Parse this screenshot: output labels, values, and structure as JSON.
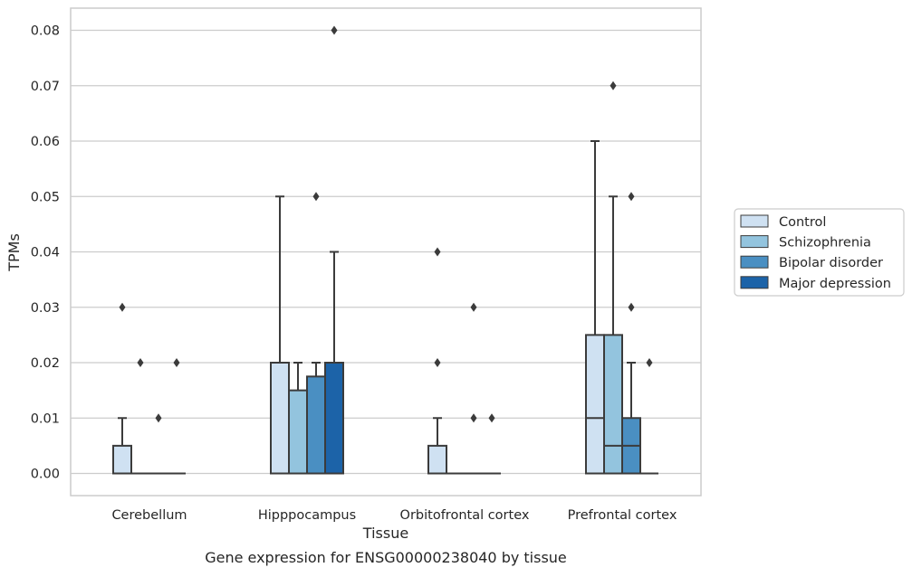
{
  "chart_data": {
    "type": "boxplot",
    "caption": "Gene expression for ENSG00000238040 by tissue",
    "xlabel": "Tissue",
    "ylabel": "TPMs",
    "ylim": [
      -0.004,
      0.084
    ],
    "yticks": [
      0.0,
      0.01,
      0.02,
      0.03,
      0.04,
      0.05,
      0.06,
      0.07,
      0.08
    ],
    "ytick_labels": [
      "0.00",
      "0.01",
      "0.02",
      "0.03",
      "0.04",
      "0.05",
      "0.06",
      "0.07",
      "0.08"
    ],
    "grid": "horizontal",
    "legend_position": "right, outside plot",
    "categories": [
      "Cerebellum",
      "Hipppocampus",
      "Orbitofrontal cortex",
      "Prefrontal cortex"
    ],
    "series": [
      {
        "name": "Control",
        "color": "#cfe1f2"
      },
      {
        "name": "Schizophrenia",
        "color": "#93c4de"
      },
      {
        "name": "Bipolar disorder",
        "color": "#4a8fc2"
      },
      {
        "name": "Major depression",
        "color": "#1c63a8"
      }
    ],
    "boxes": [
      [
        {
          "q1": 0.0,
          "median": 0.0,
          "q3": 0.005,
          "whislo": 0.0,
          "whishi": 0.01,
          "fliers": [
            0.03
          ]
        },
        {
          "q1": 0.0,
          "median": 0.0,
          "q3": 0.0,
          "whislo": 0.0,
          "whishi": 0.0,
          "fliers": [
            0.02
          ]
        },
        {
          "q1": 0.0,
          "median": 0.0,
          "q3": 0.0,
          "whislo": 0.0,
          "whishi": 0.0,
          "fliers": [
            0.01
          ]
        },
        {
          "q1": 0.0,
          "median": 0.0,
          "q3": 0.0,
          "whislo": 0.0,
          "whishi": 0.0,
          "fliers": [
            0.02
          ]
        }
      ],
      [
        {
          "q1": 0.0,
          "median": 0.0,
          "q3": 0.02,
          "whislo": 0.0,
          "whishi": 0.05,
          "fliers": []
        },
        {
          "q1": 0.0,
          "median": 0.0,
          "q3": 0.015,
          "whislo": 0.0,
          "whishi": 0.02,
          "fliers": []
        },
        {
          "q1": 0.0,
          "median": 0.0,
          "q3": 0.0175,
          "whislo": 0.0,
          "whishi": 0.02,
          "fliers": [
            0.05
          ]
        },
        {
          "q1": 0.0,
          "median": 0.0,
          "q3": 0.02,
          "whislo": 0.0,
          "whishi": 0.04,
          "fliers": [
            0.08
          ]
        }
      ],
      [
        {
          "q1": 0.0,
          "median": 0.0,
          "q3": 0.005,
          "whislo": 0.0,
          "whishi": 0.01,
          "fliers": [
            0.02,
            0.04
          ]
        },
        {
          "q1": 0.0,
          "median": 0.0,
          "q3": 0.0,
          "whislo": 0.0,
          "whishi": 0.0,
          "fliers": []
        },
        {
          "q1": 0.0,
          "median": 0.0,
          "q3": 0.0,
          "whislo": 0.0,
          "whishi": 0.0,
          "fliers": [
            0.01,
            0.03
          ]
        },
        {
          "q1": 0.0,
          "median": 0.0,
          "q3": 0.0,
          "whislo": 0.0,
          "whishi": 0.0,
          "fliers": [
            0.01
          ]
        }
      ],
      [
        {
          "q1": 0.0,
          "median": 0.01,
          "q3": 0.025,
          "whislo": 0.0,
          "whishi": 0.06,
          "fliers": []
        },
        {
          "q1": 0.0,
          "median": 0.005,
          "q3": 0.025,
          "whislo": 0.0,
          "whishi": 0.05,
          "fliers": [
            0.07
          ]
        },
        {
          "q1": 0.0,
          "median": 0.005,
          "q3": 0.01,
          "whislo": 0.0,
          "whishi": 0.02,
          "fliers": [
            0.03,
            0.05
          ]
        },
        {
          "q1": 0.0,
          "median": 0.0,
          "q3": 0.0,
          "whislo": 0.0,
          "whishi": 0.0,
          "fliers": [
            0.02
          ]
        }
      ]
    ]
  }
}
